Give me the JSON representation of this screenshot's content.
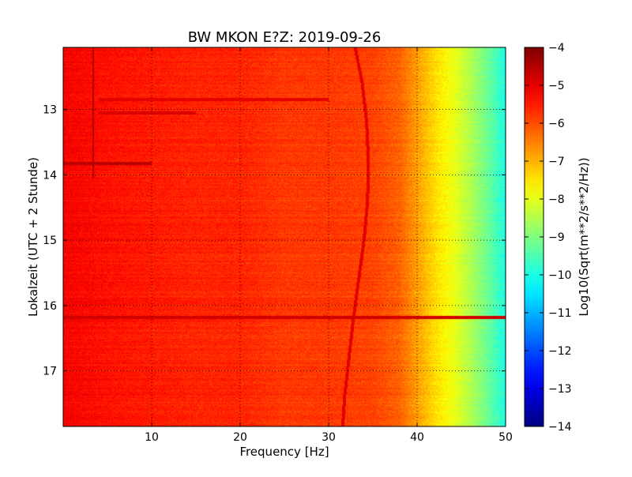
{
  "chart_data": {
    "type": "heatmap",
    "title": "BW MKON E?Z: 2019-09-26",
    "xlabel": "Frequency [Hz]",
    "ylabel": "Lokalzeit (UTC + 2 Stunde)",
    "colorbar_label": "Log10(Sqrt(m**2/s**2/Hz))",
    "colormap": "jet",
    "grid": true,
    "xlim": [
      0,
      50
    ],
    "ylim": [
      12.05,
      17.85
    ],
    "y_inverted": true,
    "x_ticks": [
      10,
      20,
      30,
      40,
      50
    ],
    "y_ticks": [
      13,
      14,
      15,
      16,
      17
    ],
    "clim": [
      -14,
      -4
    ],
    "colorbar_ticks": [
      -14,
      -13,
      -12,
      -11,
      -10,
      -9,
      -8,
      -7,
      -6,
      -5,
      -4
    ],
    "spectral_profile": {
      "frequency_hz": [
        0,
        5,
        10,
        15,
        20,
        25,
        30,
        35,
        38,
        40,
        42,
        44,
        46,
        48,
        50
      ],
      "log10_amplitude": [
        -5.2,
        -5.4,
        -5.5,
        -5.6,
        -5.6,
        -5.8,
        -5.8,
        -5.9,
        -6.2,
        -6.8,
        -7.4,
        -7.9,
        -8.5,
        -9.2,
        -10.0
      ]
    },
    "strong_bands": [
      {
        "time_h": 13.83,
        "freq_range_hz": [
          0,
          10
        ],
        "level": -4.6
      },
      {
        "time_h": 16.18,
        "freq_range_hz": [
          0,
          50
        ],
        "level": -4.8
      },
      {
        "time_h": 12.85,
        "freq_range_hz": [
          4,
          30
        ],
        "level": -5.0
      },
      {
        "time_h": 13.05,
        "freq_range_hz": [
          4,
          15
        ],
        "level": -4.9
      }
    ],
    "tremor_line": {
      "frequency_hz": [
        33.0,
        33.8,
        34.3,
        34.5,
        34.4,
        34.0,
        33.4,
        32.8,
        32.3,
        31.8,
        31.6
      ],
      "time_h": [
        12.05,
        12.6,
        13.2,
        13.8,
        14.4,
        15.0,
        15.6,
        16.2,
        16.8,
        17.4,
        17.85
      ]
    },
    "vertical_line_hz": 3.4
  }
}
